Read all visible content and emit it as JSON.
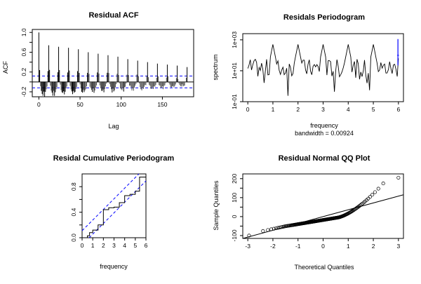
{
  "chart_data": [
    {
      "id": "acf",
      "type": "bar",
      "title": "Residual ACF",
      "xlabel": "Lag",
      "ylabel": "ACF",
      "xlim": [
        -8,
        188
      ],
      "ylim": [
        -0.3,
        1.06
      ],
      "xticks": [
        0,
        50,
        100,
        150
      ],
      "yticks": [
        -0.2,
        0.2,
        0.6,
        1.0
      ],
      "ytick_labels": [
        "-0.2",
        "0.2",
        "0.6",
        "1.0"
      ],
      "yticks_minor": [
        0.0,
        0.4,
        0.8
      ],
      "ci_upper": 0.12,
      "ci_lower": -0.12,
      "seasonal_lags": [
        0,
        12,
        24,
        36,
        48,
        60,
        72,
        84,
        96,
        108,
        120,
        132,
        144,
        156,
        168,
        180
      ],
      "seasonal_values": [
        1.0,
        0.74,
        0.71,
        0.69,
        0.66,
        0.6,
        0.57,
        0.54,
        0.51,
        0.46,
        0.43,
        0.4,
        0.37,
        0.35,
        0.33,
        0.3
      ],
      "colors": {
        "bars": "#000000",
        "ci": "#0000ff"
      }
    },
    {
      "id": "periodogram",
      "type": "line",
      "title": "Residals Periodogram",
      "xlabel": "frequency",
      "sublabel": "bandwidth = 0.00924",
      "ylabel": "spectrum",
      "log_y": true,
      "xlim": [
        -0.2,
        6.2
      ],
      "xticks": [
        0,
        1,
        2,
        3,
        4,
        5,
        6
      ],
      "ylim_log10": [
        -1,
        3.4
      ],
      "yticks_log10": [
        -1,
        1,
        3
      ],
      "ytick_labels": [
        "1e-01",
        "1e+01",
        "1e+03"
      ],
      "peaks": [
        1,
        2,
        3,
        4,
        5
      ],
      "colors": {
        "line": "#000000",
        "ci": "#0000ff"
      }
    },
    {
      "id": "cpgram",
      "type": "line",
      "title": "Residal Cumulative Periodogram",
      "xlabel": "frequency",
      "ylabel": "",
      "xlim": [
        0,
        6
      ],
      "ylim": [
        0,
        1
      ],
      "xticks": [
        0,
        1,
        2,
        3,
        4,
        5,
        6
      ],
      "yticks": [
        0.0,
        0.4,
        0.8
      ],
      "ytick_labels": [
        "0.0",
        "0.4",
        "0.8"
      ],
      "yticks_minor": [
        0.2,
        0.6
      ],
      "band": 0.11,
      "steps": [
        [
          0,
          0
        ],
        [
          0.5,
          0.03
        ],
        [
          0.7,
          0.08
        ],
        [
          1,
          0.12
        ],
        [
          1.5,
          0.2
        ],
        [
          2,
          0.44
        ],
        [
          2.5,
          0.47
        ],
        [
          3,
          0.48
        ],
        [
          3.5,
          0.55
        ],
        [
          4,
          0.66
        ],
        [
          4.5,
          0.68
        ],
        [
          5,
          0.73
        ],
        [
          5.4,
          0.95
        ],
        [
          6,
          1.0
        ]
      ],
      "colors": {
        "line": "#000000",
        "band": "#0000ff"
      }
    },
    {
      "id": "qq",
      "type": "scatter",
      "title": "Residual Normal QQ Plot",
      "xlabel": "Theoretical Quantiles",
      "ylabel": "Sample Quantiles",
      "xlim": [
        -3.2,
        3.2
      ],
      "ylim": [
        -115,
        225
      ],
      "xticks": [
        -3,
        -2,
        -1,
        0,
        1,
        2,
        3
      ],
      "yticks": [
        -100,
        0,
        100,
        200
      ],
      "yticks_minor": [
        -50,
        50,
        150
      ],
      "qq_line": {
        "intercept": 0,
        "slope": 36
      },
      "colors": {
        "points": "#000000",
        "line": "#000000"
      }
    }
  ]
}
